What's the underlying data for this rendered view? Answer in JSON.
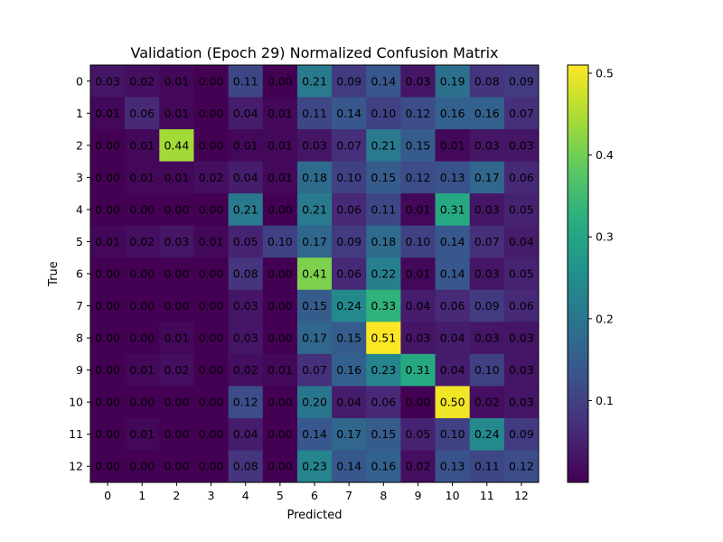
{
  "chart_data": {
    "type": "heatmap",
    "title": "Validation (Epoch 29) Normalized Confusion Matrix",
    "xlabel": "Predicted",
    "ylabel": "True",
    "x_categories": [
      "0",
      "1",
      "2",
      "3",
      "4",
      "5",
      "6",
      "7",
      "8",
      "9",
      "10",
      "11",
      "12"
    ],
    "y_categories": [
      "0",
      "1",
      "2",
      "3",
      "4",
      "5",
      "6",
      "7",
      "8",
      "9",
      "10",
      "11",
      "12"
    ],
    "values": [
      [
        0.03,
        0.02,
        0.01,
        0.0,
        0.11,
        0.0,
        0.21,
        0.09,
        0.14,
        0.03,
        0.19,
        0.08,
        0.09
      ],
      [
        0.01,
        0.06,
        0.01,
        0.0,
        0.04,
        0.01,
        0.11,
        0.14,
        0.1,
        0.12,
        0.16,
        0.16,
        0.07
      ],
      [
        0.0,
        0.01,
        0.44,
        0.0,
        0.01,
        0.01,
        0.03,
        0.07,
        0.21,
        0.15,
        0.01,
        0.03,
        0.03
      ],
      [
        0.0,
        0.01,
        0.01,
        0.02,
        0.04,
        0.01,
        0.18,
        0.1,
        0.15,
        0.12,
        0.13,
        0.17,
        0.06
      ],
      [
        0.0,
        0.0,
        0.0,
        0.0,
        0.21,
        0.0,
        0.21,
        0.06,
        0.11,
        0.01,
        0.31,
        0.03,
        0.05
      ],
      [
        0.01,
        0.02,
        0.03,
        0.01,
        0.05,
        0.1,
        0.17,
        0.09,
        0.18,
        0.1,
        0.14,
        0.07,
        0.04
      ],
      [
        0.0,
        0.0,
        0.0,
        0.0,
        0.08,
        0.0,
        0.41,
        0.06,
        0.22,
        0.01,
        0.14,
        0.03,
        0.05
      ],
      [
        0.0,
        0.0,
        0.0,
        0.0,
        0.03,
        0.0,
        0.15,
        0.24,
        0.33,
        0.04,
        0.06,
        0.09,
        0.06
      ],
      [
        0.0,
        0.0,
        0.01,
        0.0,
        0.03,
        0.0,
        0.17,
        0.15,
        0.51,
        0.03,
        0.04,
        0.03,
        0.03
      ],
      [
        0.0,
        0.01,
        0.02,
        0.0,
        0.02,
        0.01,
        0.07,
        0.16,
        0.23,
        0.31,
        0.04,
        0.1,
        0.03
      ],
      [
        0.0,
        0.0,
        0.0,
        0.0,
        0.12,
        0.0,
        0.2,
        0.04,
        0.06,
        0.0,
        0.5,
        0.02,
        0.03
      ],
      [
        0.0,
        0.01,
        0.0,
        0.0,
        0.04,
        0.0,
        0.14,
        0.17,
        0.15,
        0.05,
        0.1,
        0.24,
        0.09
      ],
      [
        0.0,
        0.0,
        0.0,
        0.0,
        0.08,
        0.0,
        0.23,
        0.14,
        0.16,
        0.02,
        0.13,
        0.11,
        0.12
      ]
    ],
    "colormap": "viridis",
    "vmin": 0.0,
    "vmax": 0.51,
    "colorbar_ticks": [
      "0.1",
      "0.2",
      "0.3",
      "0.4",
      "0.5"
    ],
    "colorbar_tick_values": [
      0.1,
      0.2,
      0.3,
      0.4,
      0.5
    ],
    "grid": false,
    "legend": "colorbar-right"
  }
}
